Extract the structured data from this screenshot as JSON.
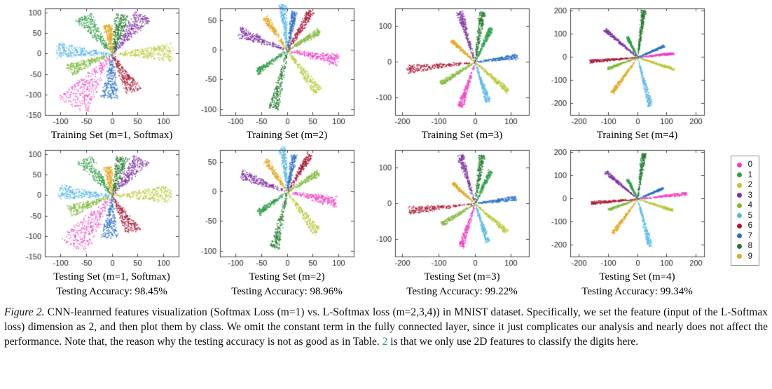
{
  "page": {
    "background": "#ffffff"
  },
  "legend": {
    "classes": [
      {
        "label": "0",
        "color": "#f23dc3"
      },
      {
        "label": "1",
        "color": "#2e9e44"
      },
      {
        "label": "2",
        "color": "#b8c832"
      },
      {
        "label": "3",
        "color": "#7d2fa0"
      },
      {
        "label": "4",
        "color": "#7fba3a"
      },
      {
        "label": "5",
        "color": "#55b8ea"
      },
      {
        "label": "6",
        "color": "#a81836"
      },
      {
        "label": "7",
        "color": "#2a6fc4"
      },
      {
        "label": "8",
        "color": "#1c7a2a"
      },
      {
        "label": "9",
        "color": "#e3a81e"
      }
    ]
  },
  "chart_data": {
    "type": "scatter",
    "title": "CNN-learned 2D feature visualization on MNIST, Softmax (m=1) vs L-Softmax (m=2,3,4)",
    "legend_position": "right",
    "plots": [
      {
        "title": "Training Set (m=1, Softmax)",
        "xlim": [
          -130,
          130
        ],
        "ylim": [
          -150,
          110
        ],
        "xticks": [
          -100,
          -50,
          0,
          50,
          100
        ],
        "yticks": [
          100,
          50,
          0,
          -50,
          -100,
          -150
        ],
        "rays": [
          {
            "class": "0",
            "angle": 238,
            "len": 150,
            "spread": 26,
            "n": 300
          },
          {
            "class": "1",
            "angle": 122,
            "len": 108,
            "spread": 20,
            "n": 260
          },
          {
            "class": "2",
            "angle": 2,
            "len": 118,
            "spread": 22,
            "n": 280
          },
          {
            "class": "3",
            "angle": 57,
            "len": 112,
            "spread": 20,
            "n": 280
          },
          {
            "class": "4",
            "angle": 205,
            "len": 95,
            "spread": 18,
            "n": 240
          },
          {
            "class": "5",
            "angle": 175,
            "len": 108,
            "spread": 20,
            "n": 260
          },
          {
            "class": "6",
            "angle": 295,
            "len": 102,
            "spread": 18,
            "n": 250
          },
          {
            "class": "7",
            "angle": 267,
            "len": 108,
            "spread": 18,
            "n": 250
          },
          {
            "class": "8",
            "angle": 78,
            "len": 98,
            "spread": 16,
            "n": 240
          },
          {
            "class": "9",
            "angle": 97,
            "len": 72,
            "spread": 14,
            "n": 200
          }
        ]
      },
      {
        "title": "Training Set (m=2)",
        "xlim": [
          -130,
          130
        ],
        "ylim": [
          -110,
          70
        ],
        "xticks": [
          -100,
          -50,
          0,
          50,
          100
        ],
        "yticks": [
          50,
          0,
          -50,
          -100
        ],
        "rays": [
          {
            "class": "0",
            "angle": 350,
            "len": 100,
            "spread": 11,
            "n": 240
          },
          {
            "class": "1",
            "angle": 212,
            "len": 68,
            "spread": 9,
            "n": 200
          },
          {
            "class": "2",
            "angle": 310,
            "len": 92,
            "spread": 11,
            "n": 230
          },
          {
            "class": "3",
            "angle": 162,
            "len": 98,
            "spread": 11,
            "n": 240
          },
          {
            "class": "4",
            "angle": 28,
            "len": 70,
            "spread": 9,
            "n": 200
          },
          {
            "class": "5",
            "angle": 97,
            "len": 78,
            "spread": 10,
            "n": 210
          },
          {
            "class": "6",
            "angle": 55,
            "len": 80,
            "spread": 10,
            "n": 230
          },
          {
            "class": "7",
            "angle": 78,
            "len": 66,
            "spread": 9,
            "n": 200
          },
          {
            "class": "8",
            "angle": 255,
            "len": 102,
            "spread": 11,
            "n": 240
          },
          {
            "class": "9",
            "angle": 128,
            "len": 70,
            "spread": 9,
            "n": 190
          }
        ]
      },
      {
        "title": "Training Set (m=3)",
        "xlim": [
          -220,
          150
        ],
        "ylim": [
          -150,
          150
        ],
        "xticks": [
          -200,
          -100,
          0,
          100
        ],
        "yticks": [
          100,
          0,
          -100
        ],
        "rays": [
          {
            "class": "0",
            "angle": 252,
            "len": 132,
            "spread": 7,
            "n": 230
          },
          {
            "class": "1",
            "angle": 65,
            "len": 105,
            "spread": 7,
            "n": 210
          },
          {
            "class": "2",
            "angle": 318,
            "len": 122,
            "spread": 7,
            "n": 220
          },
          {
            "class": "3",
            "angle": 107,
            "len": 148,
            "spread": 7,
            "n": 240
          },
          {
            "class": "4",
            "angle": 212,
            "len": 112,
            "spread": 7,
            "n": 210
          },
          {
            "class": "5",
            "angle": 288,
            "len": 118,
            "spread": 7,
            "n": 210
          },
          {
            "class": "6",
            "angle": 186,
            "len": 190,
            "spread": 7,
            "n": 240
          },
          {
            "class": "7",
            "angle": 8,
            "len": 118,
            "spread": 7,
            "n": 210
          },
          {
            "class": "8",
            "angle": 82,
            "len": 142,
            "spread": 7,
            "n": 230
          },
          {
            "class": "9",
            "angle": 137,
            "len": 88,
            "spread": 6,
            "n": 180
          }
        ]
      },
      {
        "title": "Training Set (m=4)",
        "xlim": [
          -230,
          230
        ],
        "ylim": [
          -250,
          210
        ],
        "xticks": [
          -200,
          -100,
          0,
          100,
          200
        ],
        "yticks": [
          200,
          100,
          0,
          -100,
          -200
        ],
        "rays": [
          {
            "class": "0",
            "angle": 8,
            "len": 125,
            "spread": 5,
            "n": 210
          },
          {
            "class": "1",
            "angle": 112,
            "len": 95,
            "spread": 5,
            "n": 190
          },
          {
            "class": "2",
            "angle": 338,
            "len": 135,
            "spread": 5,
            "n": 210
          },
          {
            "class": "3",
            "angle": 133,
            "len": 165,
            "spread": 5,
            "n": 230
          },
          {
            "class": "4",
            "angle": 205,
            "len": 115,
            "spread": 5,
            "n": 200
          },
          {
            "class": "5",
            "angle": 282,
            "len": 215,
            "spread": 5,
            "n": 230
          },
          {
            "class": "6",
            "angle": 186,
            "len": 165,
            "spread": 5,
            "n": 220
          },
          {
            "class": "7",
            "angle": 28,
            "len": 105,
            "spread": 5,
            "n": 190
          },
          {
            "class": "8",
            "angle": 84,
            "len": 205,
            "spread": 5,
            "n": 240
          },
          {
            "class": "9",
            "angle": 240,
            "len": 175,
            "spread": 5,
            "n": 210
          }
        ]
      },
      {
        "title": "Testing Set (m=1, Softmax)",
        "accuracy": "Testing Accuracy: 98.45%",
        "xlim": [
          -130,
          130
        ],
        "ylim": [
          -150,
          110
        ],
        "xticks": [
          -100,
          -50,
          0,
          50,
          100
        ],
        "yticks": [
          100,
          50,
          0,
          -50,
          -100,
          -150
        ],
        "rays": [
          {
            "class": "0",
            "angle": 238,
            "len": 146,
            "spread": 26,
            "n": 280
          },
          {
            "class": "1",
            "angle": 122,
            "len": 104,
            "spread": 20,
            "n": 240
          },
          {
            "class": "2",
            "angle": 2,
            "len": 114,
            "spread": 22,
            "n": 260
          },
          {
            "class": "3",
            "angle": 57,
            "len": 108,
            "spread": 20,
            "n": 260
          },
          {
            "class": "4",
            "angle": 205,
            "len": 92,
            "spread": 18,
            "n": 220
          },
          {
            "class": "5",
            "angle": 175,
            "len": 104,
            "spread": 20,
            "n": 240
          },
          {
            "class": "6",
            "angle": 295,
            "len": 98,
            "spread": 18,
            "n": 230
          },
          {
            "class": "7",
            "angle": 267,
            "len": 104,
            "spread": 18,
            "n": 230
          },
          {
            "class": "8",
            "angle": 78,
            "len": 95,
            "spread": 16,
            "n": 220
          },
          {
            "class": "9",
            "angle": 97,
            "len": 70,
            "spread": 14,
            "n": 180
          }
        ]
      },
      {
        "title": "Testing Set (m=2)",
        "accuracy": "Testing Accuracy: 98.96%",
        "xlim": [
          -130,
          130
        ],
        "ylim": [
          -110,
          70
        ],
        "xticks": [
          -100,
          -50,
          0,
          50,
          100
        ],
        "yticks": [
          50,
          0,
          -50,
          -100
        ],
        "rays": [
          {
            "class": "0",
            "angle": 350,
            "len": 97,
            "spread": 11,
            "n": 220
          },
          {
            "class": "1",
            "angle": 212,
            "len": 66,
            "spread": 9,
            "n": 190
          },
          {
            "class": "2",
            "angle": 310,
            "len": 90,
            "spread": 11,
            "n": 210
          },
          {
            "class": "3",
            "angle": 162,
            "len": 95,
            "spread": 11,
            "n": 220
          },
          {
            "class": "4",
            "angle": 28,
            "len": 68,
            "spread": 9,
            "n": 190
          },
          {
            "class": "5",
            "angle": 97,
            "len": 76,
            "spread": 10,
            "n": 200
          },
          {
            "class": "6",
            "angle": 55,
            "len": 78,
            "spread": 10,
            "n": 210
          },
          {
            "class": "7",
            "angle": 78,
            "len": 64,
            "spread": 9,
            "n": 190
          },
          {
            "class": "8",
            "angle": 255,
            "len": 99,
            "spread": 11,
            "n": 220
          },
          {
            "class": "9",
            "angle": 128,
            "len": 68,
            "spread": 9,
            "n": 180
          }
        ]
      },
      {
        "title": "Testing Set (m=3)",
        "accuracy": "Testing Accuracy: 99.22%",
        "xlim": [
          -220,
          150
        ],
        "ylim": [
          -150,
          150
        ],
        "xticks": [
          -200,
          -100,
          0,
          100
        ],
        "yticks": [
          100,
          0,
          -100
        ],
        "rays": [
          {
            "class": "0",
            "angle": 252,
            "len": 128,
            "spread": 7,
            "n": 210
          },
          {
            "class": "1",
            "angle": 65,
            "len": 102,
            "spread": 7,
            "n": 190
          },
          {
            "class": "2",
            "angle": 318,
            "len": 118,
            "spread": 7,
            "n": 200
          },
          {
            "class": "3",
            "angle": 107,
            "len": 144,
            "spread": 7,
            "n": 220
          },
          {
            "class": "4",
            "angle": 212,
            "len": 108,
            "spread": 7,
            "n": 190
          },
          {
            "class": "5",
            "angle": 288,
            "len": 114,
            "spread": 7,
            "n": 190
          },
          {
            "class": "6",
            "angle": 186,
            "len": 184,
            "spread": 7,
            "n": 220
          },
          {
            "class": "7",
            "angle": 8,
            "len": 114,
            "spread": 7,
            "n": 190
          },
          {
            "class": "8",
            "angle": 82,
            "len": 138,
            "spread": 7,
            "n": 210
          },
          {
            "class": "9",
            "angle": 137,
            "len": 85,
            "spread": 6,
            "n": 170
          }
        ]
      },
      {
        "title": "Testing Set (m=4)",
        "accuracy": "Testing Accuracy: 99.34%",
        "xlim": [
          -230,
          230
        ],
        "ylim": [
          -250,
          210
        ],
        "xticks": [
          -200,
          -100,
          0,
          100,
          200
        ],
        "yticks": [
          200,
          100,
          0,
          -100,
          -200
        ],
        "rays": [
          {
            "class": "0",
            "angle": 8,
            "len": 170,
            "spread": 5,
            "n": 200
          },
          {
            "class": "1",
            "angle": 112,
            "len": 92,
            "spread": 5,
            "n": 180
          },
          {
            "class": "2",
            "angle": 338,
            "len": 130,
            "spread": 5,
            "n": 200
          },
          {
            "class": "3",
            "angle": 133,
            "len": 160,
            "spread": 5,
            "n": 210
          },
          {
            "class": "4",
            "angle": 205,
            "len": 110,
            "spread": 5,
            "n": 190
          },
          {
            "class": "5",
            "angle": 282,
            "len": 208,
            "spread": 5,
            "n": 210
          },
          {
            "class": "6",
            "angle": 186,
            "len": 160,
            "spread": 5,
            "n": 200
          },
          {
            "class": "7",
            "angle": 28,
            "len": 100,
            "spread": 5,
            "n": 180
          },
          {
            "class": "8",
            "angle": 84,
            "len": 198,
            "spread": 5,
            "n": 220
          },
          {
            "class": "9",
            "angle": 240,
            "len": 170,
            "spread": 5,
            "n": 190
          }
        ]
      }
    ]
  },
  "caption": {
    "label": "Figure 2.",
    "text_before_ref": " CNN-leanrned features visualization (Softmax Loss (m=1) vs. L-Softmax loss (m=2,3,4)) in MNIST dataset. Specifically, we set the feature (input of the L-Softmax loss) dimension as 2, and then plot them by class. We omit the constant term in the fully connected layer, since it just complicates our analysis and nearly does not affect the performance. Note that, the reason why the testing accuracy is not as good as in Table. ",
    "ref": "2",
    "ref_color": "#1fa08c",
    "text_after_ref": " is that we only use 2D features to classify the digits here."
  }
}
